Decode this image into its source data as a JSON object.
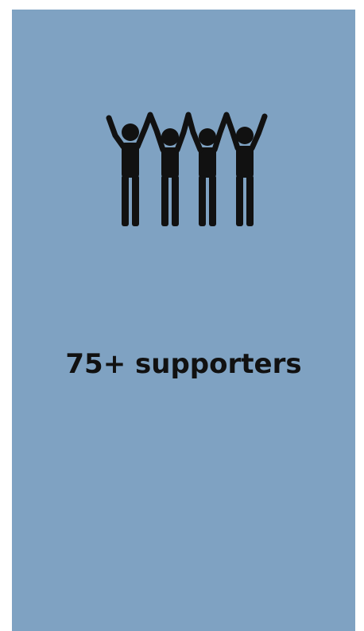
{
  "card": {
    "background_color": "#7fa2c2",
    "icon": "group-raising-hands-icon",
    "icon_color": "#111111",
    "headline": "75+ supporters"
  }
}
